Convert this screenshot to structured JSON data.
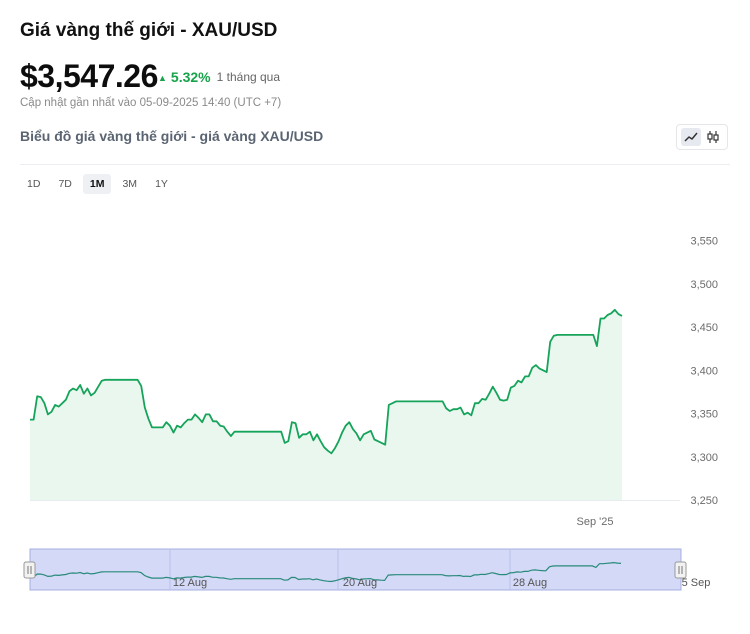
{
  "header": {
    "title": "Giá vàng thế giới - XAU/USD",
    "price": "$3,547.26",
    "change_pct": "5.32%",
    "change_period": "1 tháng qua",
    "updated": "Cập nhật gần nhất vào 05-09-2025 14:40 (UTC +7)",
    "subtitle": "Biểu đồ giá vàng thế giới - giá vàng XAU/USD"
  },
  "controls": {
    "ranges": [
      "1D",
      "7D",
      "1M",
      "3M",
      "1Y"
    ],
    "active_range": "1M",
    "chart_types": [
      "line-chart-icon",
      "candlestick-icon"
    ],
    "active_type": "line-chart-icon"
  },
  "colors": {
    "line": "#16a35a",
    "area": "#eaf7ef",
    "up": "#16a34a",
    "navigator_bg": "#d3d9f7",
    "navigator_border": "#a6b0e0"
  },
  "chart_data": {
    "type": "area",
    "title": "",
    "xlabel": "",
    "ylabel": "",
    "ylim": [
      3250,
      3560
    ],
    "y_ticks": [
      3250,
      3300,
      3350,
      3400,
      3450,
      3500,
      3550
    ],
    "y_tick_labels": [
      "3,250",
      "3,300",
      "3,350",
      "3,400",
      "3,450",
      "3,500",
      "3,550"
    ],
    "x_tick_labels": [
      "Sep '25"
    ],
    "grid": false,
    "legend": "none",
    "series": [
      {
        "values": [
          3343,
          3343,
          3370,
          3369,
          3362,
          3349,
          3352,
          3360,
          3358,
          3362,
          3366,
          3376,
          3379,
          3377,
          3383,
          3373,
          3379,
          3371,
          3374,
          3381,
          3388,
          3389,
          3389,
          3389,
          3389,
          3389,
          3389,
          3389,
          3389,
          3389,
          3389,
          3382,
          3357,
          3344,
          3334,
          3334,
          3334,
          3334,
          3340,
          3336,
          3328,
          3336,
          3334,
          3339,
          3343,
          3343,
          3349,
          3345,
          3340,
          3349,
          3349,
          3341,
          3341,
          3336,
          3335,
          3329,
          3324,
          3329,
          3329,
          3329,
          3329,
          3329,
          3329,
          3329,
          3329,
          3329,
          3329,
          3329,
          3329,
          3329,
          3329,
          3316,
          3318,
          3340,
          3339,
          3322,
          3326,
          3326,
          3329,
          3319,
          3326,
          3318,
          3311,
          3307,
          3304,
          3310,
          3318,
          3328,
          3336,
          3340,
          3332,
          3327,
          3319,
          3326,
          3328,
          3330,
          3320,
          3318,
          3316,
          3314,
          3360,
          3362,
          3364,
          3364,
          3364,
          3364,
          3364,
          3364,
          3364,
          3364,
          3364,
          3364,
          3364,
          3364,
          3364,
          3364,
          3356,
          3353,
          3355,
          3355,
          3357,
          3349,
          3351,
          3348,
          3362,
          3362,
          3367,
          3366,
          3373,
          3381,
          3374,
          3366,
          3365,
          3366,
          3380,
          3382,
          3388,
          3386,
          3393,
          3393,
          3403,
          3406,
          3402,
          3400,
          3398,
          3433,
          3440,
          3441,
          3441,
          3441,
          3441,
          3441,
          3441,
          3441,
          3441,
          3441,
          3441,
          3441,
          3428,
          3460,
          3460,
          3464,
          3466,
          3470,
          3465,
          3463
        ]
      }
    ],
    "navigator": {
      "labels": [
        "12 Aug",
        "20 Aug",
        "28 Aug",
        "5 Sep"
      ]
    }
  }
}
